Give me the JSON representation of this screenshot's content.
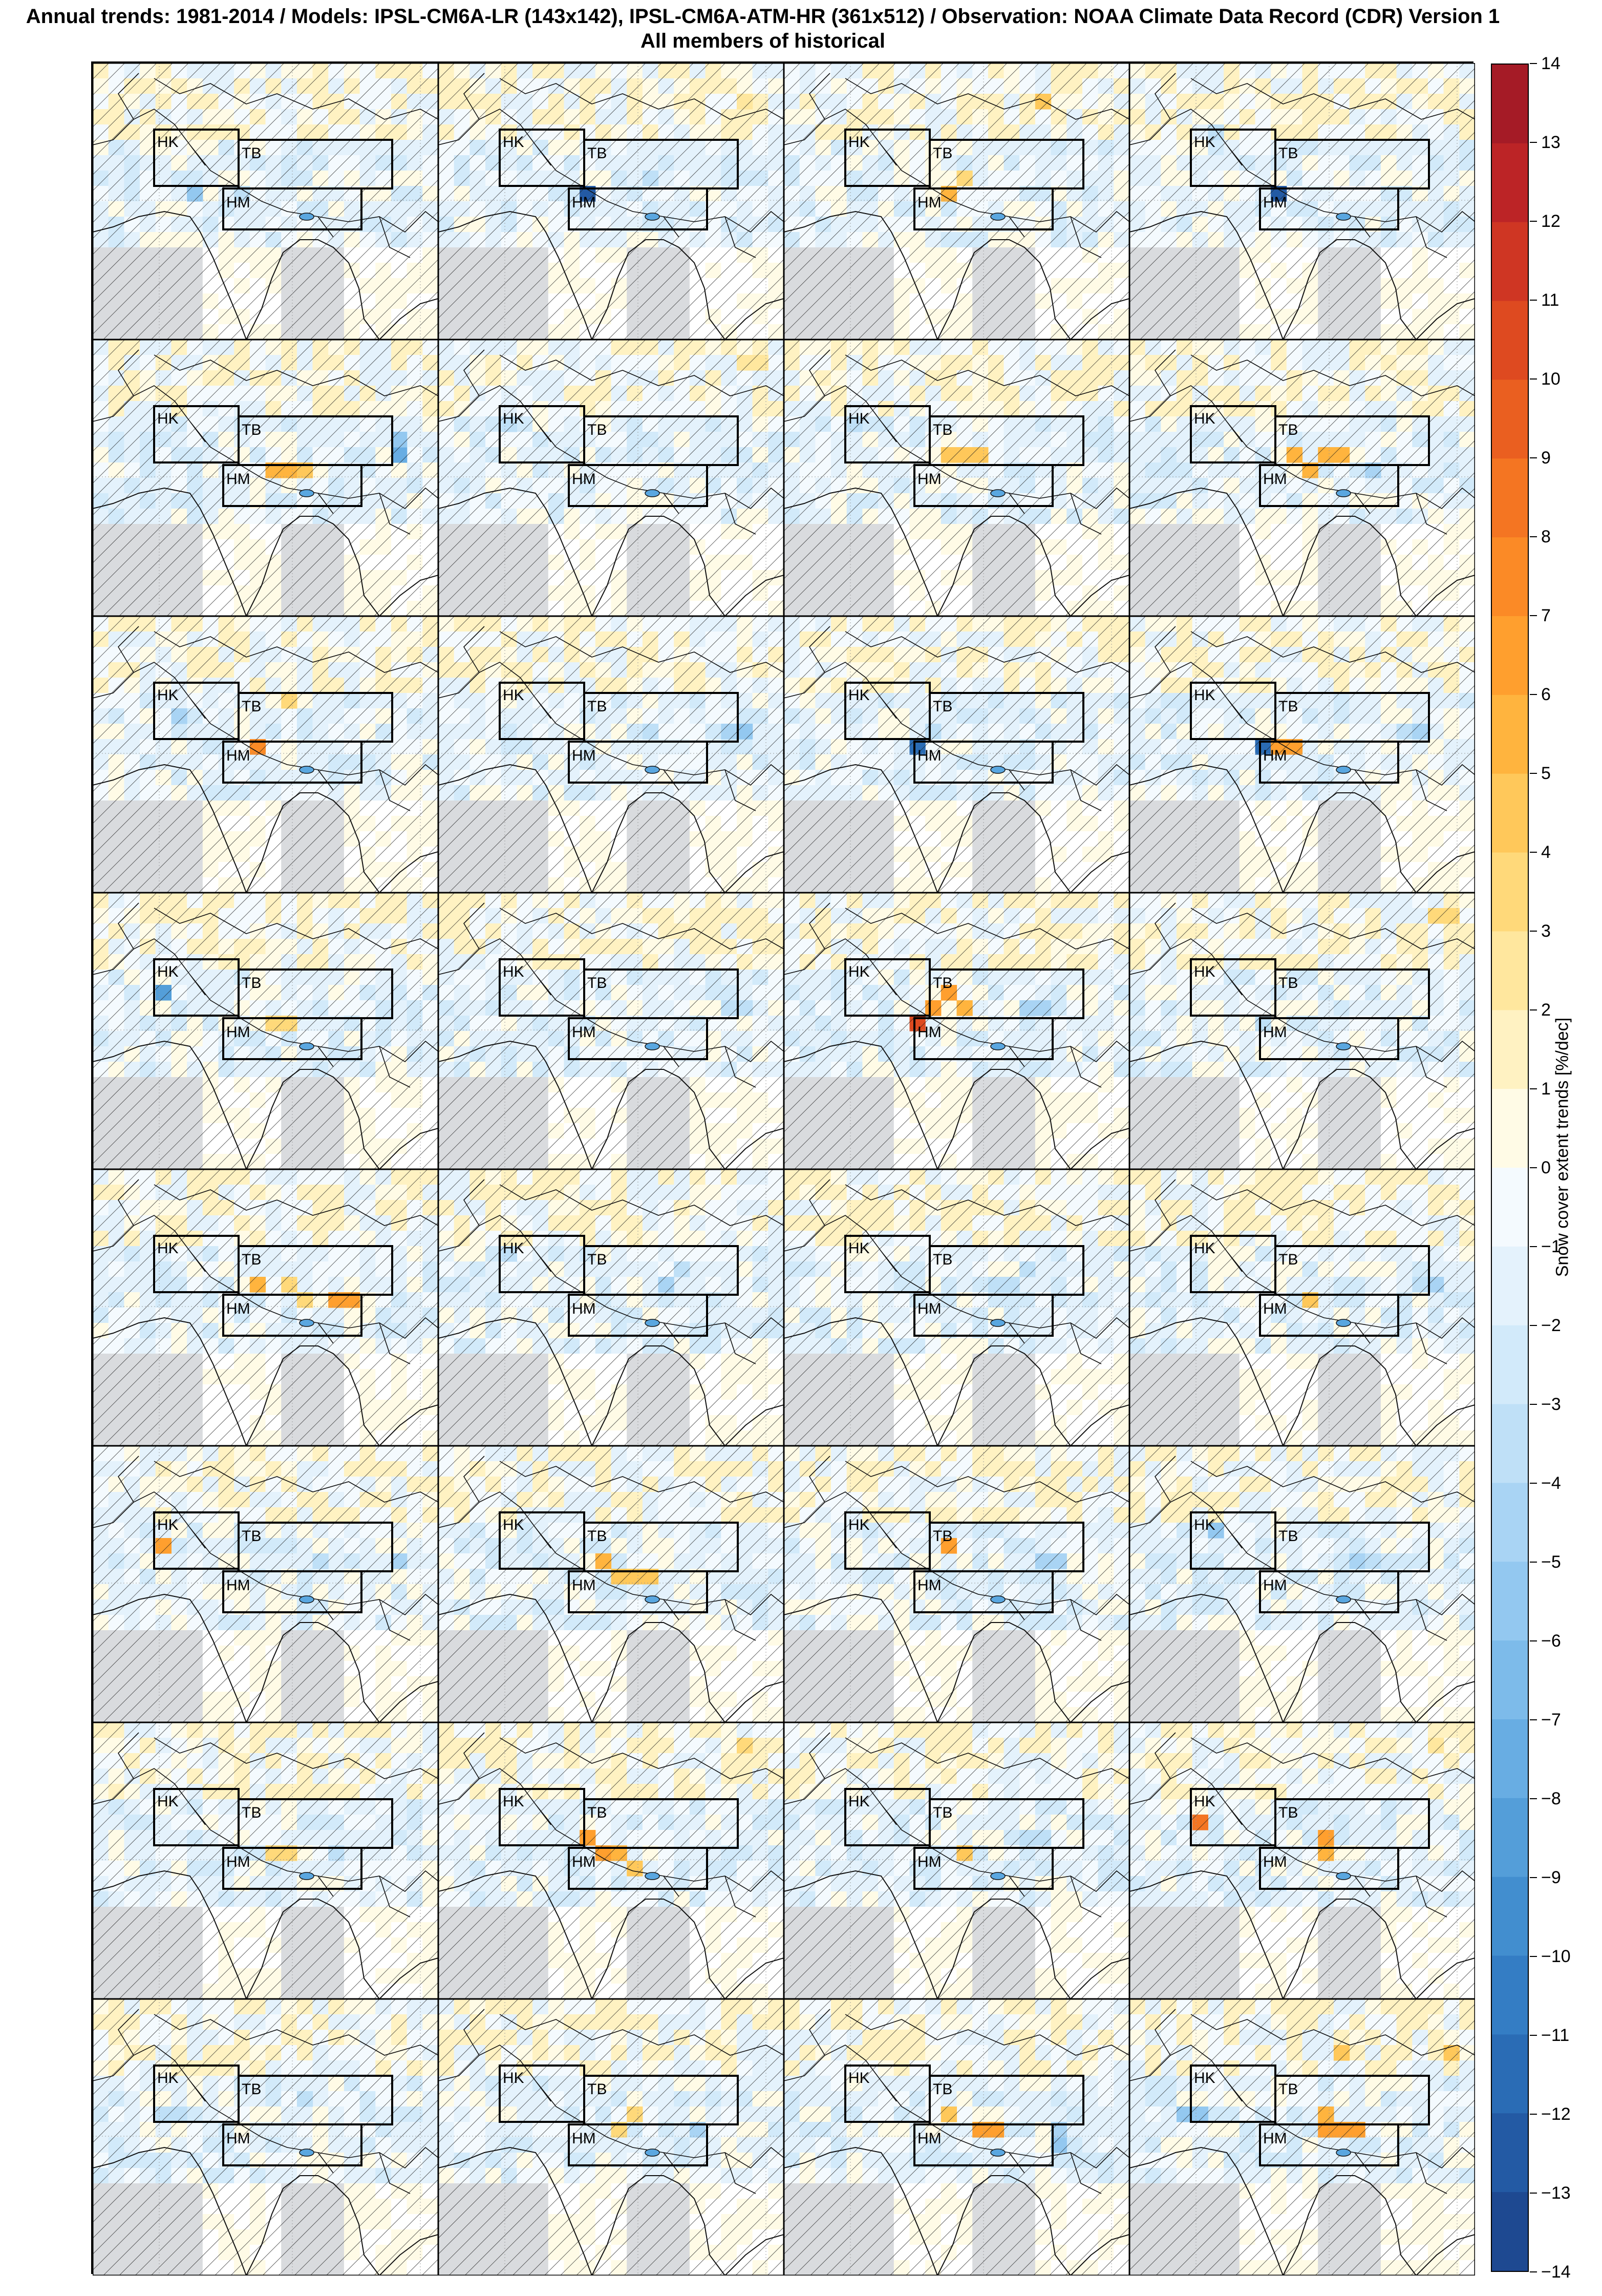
{
  "figure": {
    "title_line1": "Annual trends: 1981-2014 / Models: IPSL-CM6A-LR (143x142), IPSL-CM6A-ATM-HR (361x512) / Observation: NOAA Climate Data Record (CDR) Version 1",
    "title_line2": "All members of historical",
    "rows": 8,
    "cols": 4
  },
  "regions": {
    "hk": "HK",
    "tb": "TB",
    "hm": "HM"
  },
  "colorbar": {
    "label": "Snow cover extent trends [%/dec]",
    "min": -14,
    "max": 14,
    "ticks": [
      "14",
      "13",
      "12",
      "11",
      "10",
      "9",
      "8",
      "7",
      "6",
      "5",
      "4",
      "3",
      "2",
      "1",
      "0",
      "−1",
      "−2",
      "−3",
      "−4",
      "−5",
      "−6",
      "−7",
      "−8",
      "−9",
      "−10",
      "−11",
      "−12",
      "−13",
      "−14"
    ],
    "colors": {
      "positive": [
        "#fffbe6",
        "#fff2c2",
        "#ffe79e",
        "#ffd97a",
        "#ffc85a",
        "#ffb43e",
        "#ff9f2e",
        "#fb8a26",
        "#f47522",
        "#ea5f20",
        "#de4a20",
        "#cf3623",
        "#bc2426",
        "#a51b26",
        "#8c1623",
        "#731019"
      ],
      "negative": [
        "#f4fafe",
        "#e4f2fc",
        "#d2eafa",
        "#bfe0f7",
        "#a9d4f4",
        "#93c8f0",
        "#7dbbea",
        "#68ade3",
        "#549ed9",
        "#428ecf",
        "#347dc4",
        "#2a6cb5",
        "#235aa4",
        "#1e4991",
        "#1a3a7d",
        "#162c66"
      ],
      "land_missing": "#d9dbde",
      "ocean": "#ffffff"
    }
  },
  "panels": [
    {
      "cells": [
        {
          "c": 9,
          "r": 8,
          "v": -3
        },
        {
          "c": 6,
          "r": 8,
          "v": -5
        }
      ]
    },
    {
      "cells": [
        {
          "c": 9,
          "r": 8,
          "v": -12
        },
        {
          "c": 13,
          "r": 7,
          "v": -3
        },
        {
          "c": 19,
          "r": 2,
          "v": 2
        }
      ]
    },
    {
      "cells": [
        {
          "c": 10,
          "r": 8,
          "v": 5
        },
        {
          "c": 11,
          "r": 7,
          "v": 3
        },
        {
          "c": 16,
          "r": 2,
          "v": 4
        }
      ]
    },
    {
      "cells": [
        {
          "c": 9,
          "r": 8,
          "v": -12
        },
        {
          "c": 5,
          "r": 4,
          "v": -3
        }
      ]
    },
    {
      "cells": [
        {
          "c": 11,
          "r": 8,
          "v": 5
        },
        {
          "c": 12,
          "r": 8,
          "v": 5
        },
        {
          "c": 13,
          "r": 8,
          "v": 4
        },
        {
          "c": 19,
          "r": 7,
          "v": -7
        },
        {
          "c": 19,
          "r": 6,
          "v": -5
        }
      ]
    },
    {
      "cells": [
        {
          "c": 19,
          "r": 1,
          "v": 2
        },
        {
          "c": 20,
          "r": 1,
          "v": 2
        },
        {
          "c": 4,
          "r": 5,
          "v": -3
        }
      ]
    },
    {
      "cells": [
        {
          "c": 10,
          "r": 7,
          "v": 4
        },
        {
          "c": 11,
          "r": 7,
          "v": 4
        },
        {
          "c": 12,
          "r": 7,
          "v": 4
        },
        {
          "c": 4,
          "r": 5,
          "v": -3
        }
      ]
    },
    {
      "cells": [
        {
          "c": 10,
          "r": 7,
          "v": 5
        },
        {
          "c": 11,
          "r": 8,
          "v": 5
        },
        {
          "c": 12,
          "r": 7,
          "v": 5
        },
        {
          "c": 13,
          "r": 7,
          "v": 5
        },
        {
          "c": 15,
          "r": 8,
          "v": -4
        }
      ]
    },
    {
      "cells": [
        {
          "c": 10,
          "r": 8,
          "v": 7
        },
        {
          "c": 12,
          "r": 5,
          "v": 3
        },
        {
          "c": 5,
          "r": 6,
          "v": -4
        }
      ]
    },
    {
      "cells": [
        {
          "c": 19,
          "r": 7,
          "v": -5
        },
        {
          "c": 18,
          "r": 7,
          "v": -4
        },
        {
          "c": 13,
          "r": 7,
          "v": -3
        }
      ]
    },
    {
      "cells": [
        {
          "c": 8,
          "r": 8,
          "v": -11
        },
        {
          "c": 9,
          "r": 7,
          "v": -3
        }
      ]
    },
    {
      "cells": [
        {
          "c": 8,
          "r": 8,
          "v": -11
        },
        {
          "c": 9,
          "r": 8,
          "v": 6
        },
        {
          "c": 10,
          "r": 8,
          "v": 6
        },
        {
          "c": 17,
          "r": 7,
          "v": -3
        },
        {
          "c": 18,
          "r": 7,
          "v": -4
        }
      ]
    },
    {
      "cells": [
        {
          "c": 4,
          "r": 6,
          "v": -8
        },
        {
          "c": 11,
          "r": 8,
          "v": 3
        },
        {
          "c": 12,
          "r": 8,
          "v": 3
        }
      ]
    },
    {
      "cells": [
        {
          "c": 19,
          "r": 7,
          "v": -3
        },
        {
          "c": 18,
          "r": 7,
          "v": -3
        }
      ]
    },
    {
      "cells": [
        {
          "c": 8,
          "r": 8,
          "v": 10
        },
        {
          "c": 9,
          "r": 7,
          "v": 6
        },
        {
          "c": 10,
          "r": 6,
          "v": 6
        },
        {
          "c": 11,
          "r": 7,
          "v": 5
        },
        {
          "c": 15,
          "r": 7,
          "v": -4
        },
        {
          "c": 16,
          "r": 7,
          "v": -4
        }
      ]
    },
    {
      "cells": [
        {
          "c": 19,
          "r": 1,
          "v": 3
        },
        {
          "c": 20,
          "r": 1,
          "v": 3
        },
        {
          "c": 8,
          "r": 8,
          "v": -3
        }
      ]
    },
    {
      "cells": [
        {
          "c": 10,
          "r": 7,
          "v": 5
        },
        {
          "c": 15,
          "r": 8,
          "v": 6
        },
        {
          "c": 16,
          "r": 8,
          "v": 6
        },
        {
          "c": 12,
          "r": 7,
          "v": 3
        },
        {
          "c": 13,
          "r": 8,
          "v": 3
        }
      ]
    },
    {
      "cells": [
        {
          "c": 14,
          "r": 7,
          "v": -4
        },
        {
          "c": 15,
          "r": 6,
          "v": -3
        },
        {
          "c": 4,
          "r": 5,
          "v": -3
        }
      ]
    },
    {
      "cells": [
        {
          "c": 13,
          "r": 7,
          "v": -3
        },
        {
          "c": 14,
          "r": 7,
          "v": -3
        },
        {
          "c": 15,
          "r": 6,
          "v": -3
        }
      ]
    },
    {
      "cells": [
        {
          "c": 11,
          "r": 8,
          "v": 4
        },
        {
          "c": 19,
          "r": 7,
          "v": -4
        },
        {
          "c": 18,
          "r": 7,
          "v": -3
        }
      ]
    },
    {
      "cells": [
        {
          "c": 4,
          "r": 6,
          "v": 6
        },
        {
          "c": 14,
          "r": 7,
          "v": -3
        },
        {
          "c": 19,
          "r": 7,
          "v": -4
        }
      ]
    },
    {
      "cells": [
        {
          "c": 10,
          "r": 7,
          "v": 5
        },
        {
          "c": 11,
          "r": 8,
          "v": 4
        },
        {
          "c": 12,
          "r": 8,
          "v": 4
        },
        {
          "c": 13,
          "r": 8,
          "v": 4
        }
      ]
    },
    {
      "cells": [
        {
          "c": 10,
          "r": 6,
          "v": 6
        },
        {
          "c": 16,
          "r": 7,
          "v": -4
        },
        {
          "c": 17,
          "r": 7,
          "v": -4
        }
      ]
    },
    {
      "cells": [
        {
          "c": 5,
          "r": 5,
          "v": -5
        },
        {
          "c": 14,
          "r": 7,
          "v": -4
        },
        {
          "c": 15,
          "r": 7,
          "v": -3
        }
      ]
    },
    {
      "cells": [
        {
          "c": 11,
          "r": 8,
          "v": 3
        },
        {
          "c": 12,
          "r": 8,
          "v": 3
        },
        {
          "c": 15,
          "r": 8,
          "v": -3
        }
      ]
    },
    {
      "cells": [
        {
          "c": 9,
          "r": 7,
          "v": 6
        },
        {
          "c": 10,
          "r": 8,
          "v": 6
        },
        {
          "c": 11,
          "r": 8,
          "v": 5
        },
        {
          "c": 12,
          "r": 9,
          "v": 4
        },
        {
          "c": 19,
          "r": 1,
          "v": 3
        }
      ]
    },
    {
      "cells": [
        {
          "c": 11,
          "r": 8,
          "v": 4
        },
        {
          "c": 16,
          "r": 7,
          "v": -3
        },
        {
          "c": 15,
          "r": 7,
          "v": -3
        }
      ]
    },
    {
      "cells": [
        {
          "c": 4,
          "r": 6,
          "v": 8
        },
        {
          "c": 12,
          "r": 7,
          "v": 6
        },
        {
          "c": 12,
          "r": 8,
          "v": 5
        },
        {
          "c": 19,
          "r": 1,
          "v": 2
        }
      ]
    },
    {
      "cells": [
        {
          "c": 4,
          "r": 7,
          "v": -3
        },
        {
          "c": 5,
          "r": 7,
          "v": -3
        },
        {
          "c": 13,
          "r": 6,
          "v": -3
        }
      ]
    },
    {
      "cells": [
        {
          "c": 11,
          "r": 8,
          "v": 3
        },
        {
          "c": 12,
          "r": 7,
          "v": 3
        },
        {
          "c": 16,
          "r": 8,
          "v": -4
        }
      ]
    },
    {
      "cells": [
        {
          "c": 10,
          "r": 7,
          "v": 4
        },
        {
          "c": 12,
          "r": 8,
          "v": 6
        },
        {
          "c": 13,
          "r": 8,
          "v": 6
        },
        {
          "c": 17,
          "r": 9,
          "v": -5
        },
        {
          "c": 17,
          "r": 8,
          "v": -4
        }
      ]
    },
    {
      "cells": [
        {
          "c": 3,
          "r": 7,
          "v": -5
        },
        {
          "c": 4,
          "r": 7,
          "v": -5
        },
        {
          "c": 12,
          "r": 8,
          "v": 6
        },
        {
          "c": 13,
          "r": 8,
          "v": 6
        },
        {
          "c": 14,
          "r": 8,
          "v": 6
        },
        {
          "c": 13,
          "r": 3,
          "v": 4
        },
        {
          "c": 20,
          "r": 3,
          "v": 4
        },
        {
          "c": 12,
          "r": 7,
          "v": 5
        }
      ]
    }
  ]
}
